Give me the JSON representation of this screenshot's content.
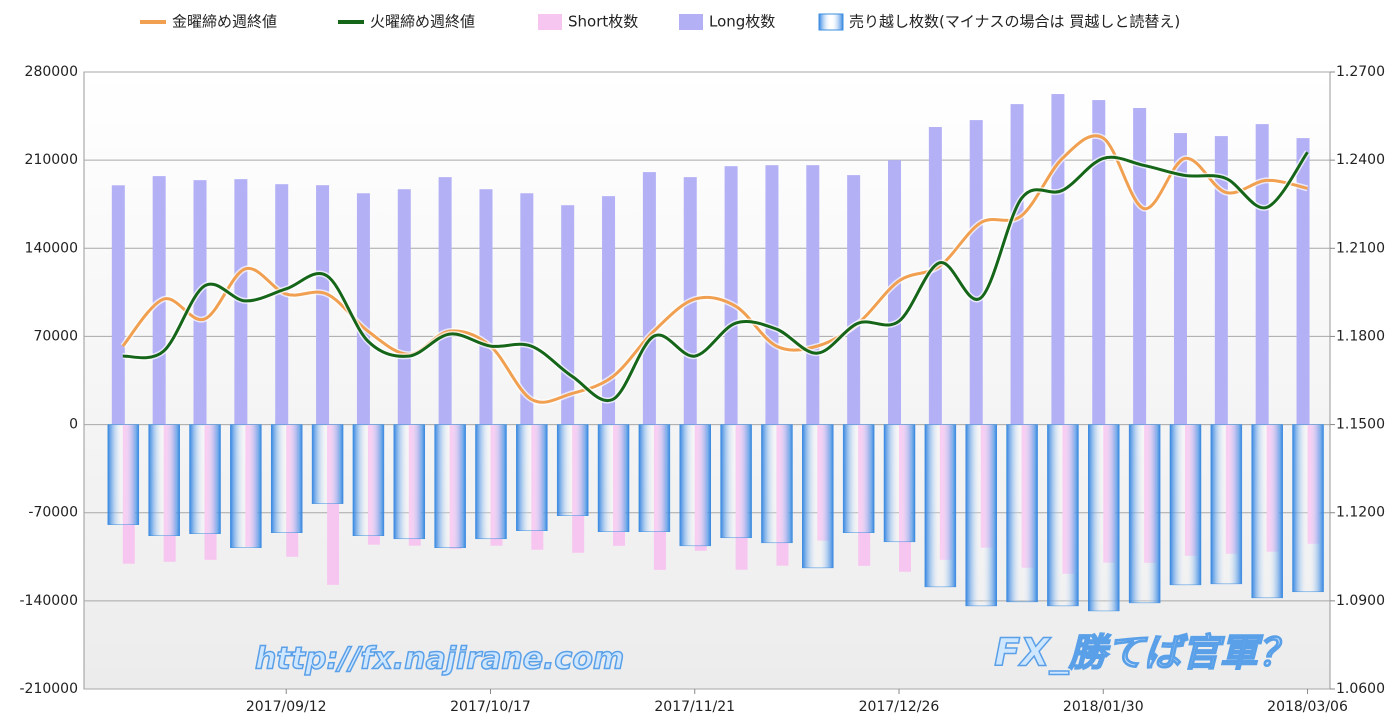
{
  "chart_data": {
    "type": "bar",
    "categories": [
      null,
      null,
      null,
      null,
      "2017/09/12",
      null,
      null,
      null,
      null,
      "2017/10/17",
      null,
      null,
      null,
      null,
      "2017/11/21",
      null,
      null,
      null,
      null,
      "2017/12/26",
      null,
      null,
      null,
      null,
      "2018/01/30",
      null,
      null,
      null,
      null,
      "2018/03/06"
    ],
    "series": [
      {
        "name": "金曜締め週終値",
        "type": "line",
        "axis": "y2",
        "color": "#f0a050",
        "values": [
          1.1767,
          1.1927,
          1.1859,
          1.203,
          1.1944,
          1.1944,
          1.1818,
          1.1739,
          1.1818,
          1.1767,
          1.1586,
          1.1606,
          1.1664,
          1.1818,
          1.1927,
          1.1903,
          1.1767,
          1.1767,
          1.1845,
          1.1989,
          1.204,
          1.2187,
          1.2211,
          1.2406,
          1.2475,
          1.2235,
          1.2406,
          1.229,
          1.2331,
          1.2304
        ]
      },
      {
        "name": "火曜締め週終値",
        "type": "line",
        "axis": "y2",
        "color": "#16661a",
        "values": [
          1.1733,
          1.175,
          1.1972,
          1.1921,
          1.1962,
          1.2006,
          1.1784,
          1.1733,
          1.1808,
          1.1767,
          1.1767,
          1.1664,
          1.1586,
          1.1801,
          1.1733,
          1.1845,
          1.1825,
          1.1743,
          1.1845,
          1.1852,
          1.2051,
          1.1931,
          1.227,
          1.2297,
          1.2406,
          1.2382,
          1.2348,
          1.2338,
          1.2239,
          1.2427
        ]
      },
      {
        "name": "Short枚数",
        "type": "bar",
        "color": "#f7c6f0",
        "values": [
          -110500,
          -109000,
          -107400,
          -97100,
          -105000,
          -127300,
          -95400,
          -96200,
          -98700,
          -96200,
          -99400,
          -101800,
          -96300,
          -115400,
          -100200,
          -115300,
          -112100,
          -92200,
          -112200,
          -116900,
          -107400,
          -97800,
          -113700,
          -118500,
          -109700,
          -109800,
          -104200,
          -102600,
          -101000,
          -94700
        ]
      },
      {
        "name": "Long枚数",
        "type": "bar",
        "color": "#b3b0f5",
        "values": [
          190000,
          197300,
          194100,
          194900,
          190900,
          190100,
          183700,
          186900,
          196500,
          186900,
          183700,
          174200,
          181400,
          200500,
          196500,
          205200,
          206000,
          206000,
          198100,
          210000,
          236300,
          241800,
          254500,
          262500,
          257700,
          251400,
          231500,
          229100,
          238600,
          227500
        ]
      },
      {
        "name": "売り越し枚数(マイナスの場合は 買越しと読替え)",
        "type": "bar",
        "color": "#3b8de0",
        "values": [
          -79500,
          -88300,
          -86700,
          -97800,
          -85900,
          -62800,
          -88300,
          -90700,
          -97800,
          -90700,
          -84300,
          -72400,
          -85100,
          -85100,
          -96300,
          -89900,
          -93900,
          -113800,
          -85900,
          -93100,
          -128900,
          -144000,
          -140800,
          -144000,
          -148000,
          -141600,
          -127300,
          -126500,
          -137600,
          -132800
        ]
      }
    ],
    "ylim": [
      -210000,
      280000
    ],
    "yticks": [
      280000,
      210000,
      140000,
      70000,
      0,
      -70000,
      -140000,
      -210000
    ],
    "y2lim": [
      1.06,
      1.27
    ],
    "y2ticks": [
      {
        "value": 1.27,
        "label": "1.2700"
      },
      {
        "value": 1.24,
        "label": "1.2400"
      },
      {
        "value": 1.21,
        "label": "1.2100"
      },
      {
        "value": 1.18,
        "label": "1.1800"
      },
      {
        "value": 1.15,
        "label": "1.1500"
      },
      {
        "value": 1.12,
        "label": "1.1200"
      },
      {
        "value": 1.09,
        "label": "1.0900"
      },
      {
        "value": 1.06,
        "label": "1.0600"
      }
    ],
    "grid": true,
    "legend": "top",
    "watermarks": [
      "http://fx.najirane.com",
      "FX_勝てば官軍？"
    ]
  }
}
